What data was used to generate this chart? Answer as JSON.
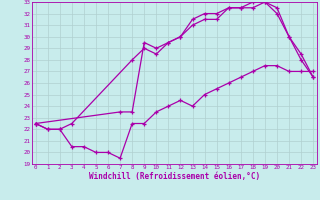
{
  "xlabel": "Windchill (Refroidissement éolien,°C)",
  "bg_color": "#c8ecec",
  "grid_color": "#b0d0d0",
  "line_color": "#aa00aa",
  "xmin": 0,
  "xmax": 23,
  "ymin": 19,
  "ymax": 33,
  "line1_x": [
    0,
    1,
    2,
    3,
    4,
    5,
    6,
    7,
    8,
    9,
    10,
    11,
    12,
    13,
    14,
    15,
    16,
    17,
    18,
    19,
    20,
    21,
    22,
    23
  ],
  "line1_y": [
    22.5,
    22.0,
    22.0,
    20.5,
    20.5,
    20.0,
    20.0,
    19.5,
    22.5,
    22.5,
    23.5,
    24.0,
    24.5,
    24.0,
    25.0,
    25.5,
    26.0,
    26.5,
    27.0,
    27.5,
    27.5,
    27.0,
    27.0,
    27.0
  ],
  "line2_x": [
    0,
    1,
    2,
    3,
    8,
    9,
    10,
    11,
    12,
    13,
    14,
    15,
    16,
    17,
    18,
    19,
    20,
    21,
    22,
    23
  ],
  "line2_y": [
    22.5,
    22.0,
    22.0,
    22.5,
    28.0,
    29.0,
    28.5,
    29.5,
    30.0,
    31.0,
    31.5,
    31.5,
    32.5,
    32.5,
    32.5,
    33.0,
    32.0,
    30.0,
    28.0,
    26.5
  ],
  "line3_x": [
    0,
    7,
    8,
    9,
    10,
    11,
    12,
    13,
    14,
    15,
    16,
    17,
    18,
    19,
    20,
    21,
    22,
    23
  ],
  "line3_y": [
    22.5,
    23.5,
    23.5,
    29.5,
    29.0,
    29.5,
    30.0,
    31.5,
    32.0,
    32.0,
    32.5,
    32.5,
    33.0,
    33.0,
    32.5,
    30.0,
    28.5,
    26.5
  ]
}
